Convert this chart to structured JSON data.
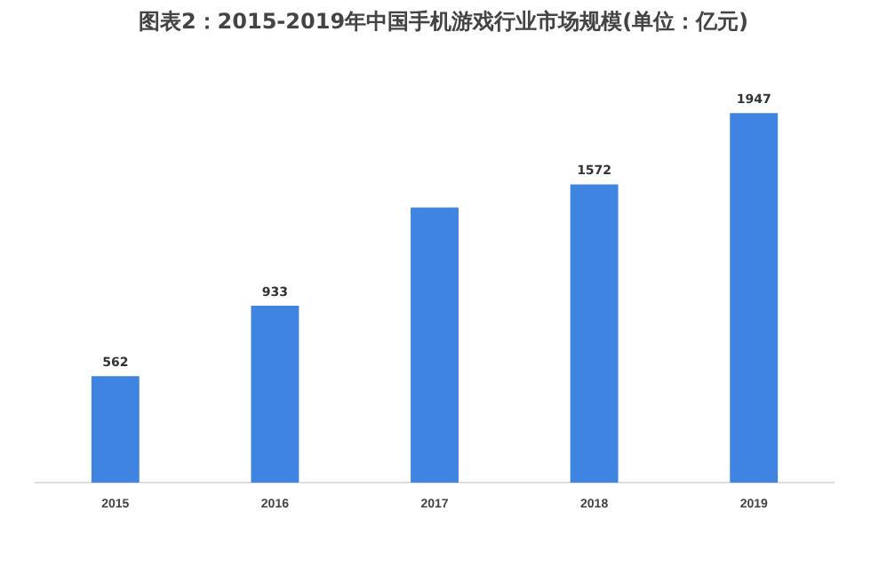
{
  "chart_data": {
    "type": "bar",
    "title": "图表2：2015-2019年中国手机游戏行业市场规模(单位：亿元)",
    "categories": [
      "2015",
      "2016",
      "2017",
      "2018",
      "2019"
    ],
    "values": [
      562,
      933,
      1450,
      1572,
      1947
    ],
    "value_labels": [
      "562",
      "933",
      null,
      "1572",
      "1947"
    ],
    "color": "#3f84e0",
    "grid": false,
    "legend": false
  }
}
